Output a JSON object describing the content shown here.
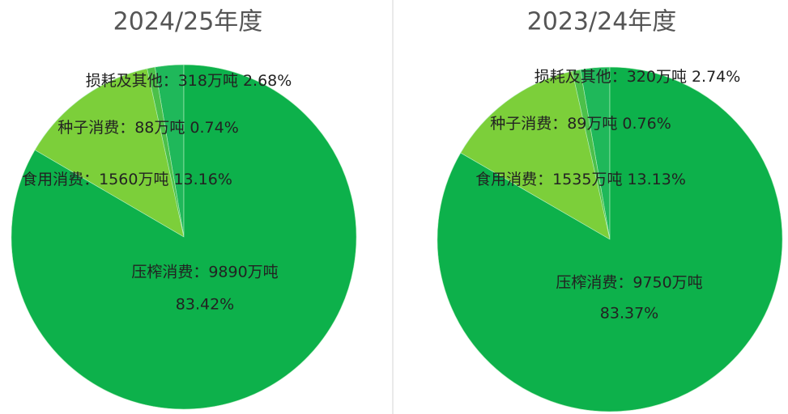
{
  "chart_data": [
    {
      "type": "pie",
      "title": "2024/25年度",
      "labels": [
        "损耗及其他：318万吨",
        "种子消费：88万吨",
        "食用消费：1560万吨",
        "压榨消费：9890万吨"
      ],
      "values": [
        2.68,
        0.74,
        13.16,
        83.42
      ],
      "value_labels": [
        "2.68%",
        "0.74%",
        "13.16%",
        "83.42%"
      ],
      "colors": [
        "#1fb85a",
        "#4cc04a",
        "#7ccf3a",
        "#0db14b"
      ]
    },
    {
      "type": "pie",
      "title": "2023/24年度",
      "labels": [
        "损耗及其他：320万吨",
        "种子消费：89万吨",
        "食用消费：1535万吨",
        "压榨消费：9750万吨"
      ],
      "values": [
        2.74,
        0.76,
        13.13,
        83.37
      ],
      "value_labels": [
        "2.74%",
        "0.76%",
        "13.13%",
        "83.37%"
      ],
      "colors": [
        "#1fb85a",
        "#4cc04a",
        "#7ccf3a",
        "#0db14b"
      ]
    }
  ]
}
